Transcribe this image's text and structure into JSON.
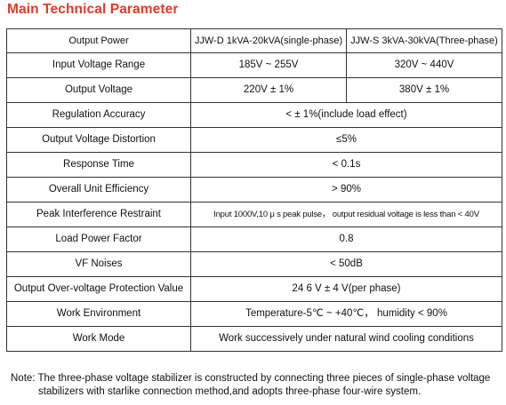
{
  "title": "Main Technical Parameter",
  "header_row": {
    "label": "Output  Power",
    "single": "JJW-D 1kVA-20kVA(single-phase)",
    "three": "JJW-S 3kVA-30kVA(Three-phase)"
  },
  "split_rows": [
    {
      "label": "Input Voltage Range",
      "single": "185V ~ 255V",
      "three": "320V ~ 440V"
    },
    {
      "label": "Output Voltage",
      "single": "220V ± 1%",
      "three": "380V ± 1%"
    }
  ],
  "merged_rows": [
    {
      "label": "Regulation Accuracy",
      "value": "< ± 1%(include load effect)"
    },
    {
      "label": "Output  Voltage  Distortion",
      "value": "≤5%"
    },
    {
      "label": "Response Time",
      "value": "< 0.1s"
    },
    {
      "label": "Overall Unit Efficiency",
      "value": "> 90%"
    },
    {
      "label": "Peak Interference Restraint",
      "value": "Input 1000V,10 μ s peak pulse， output residual voltage is less than  < 40V"
    },
    {
      "label": "Load Power Factor",
      "value": "0.8"
    },
    {
      "label": "VF Noises",
      "value": "< 50dB"
    },
    {
      "label": "Output Over-voltage Protection Value",
      "value": "24 6 V ± 4 V(per phase)"
    },
    {
      "label": "Work Environment",
      "value": "Temperature-5℃ ~ +40℃， humidity < 90%"
    },
    {
      "label": "Work Mode",
      "value": "Work successively under natural wind cooling conditions"
    }
  ],
  "note": {
    "line1": "Note: The three-phase voltage stabilizer is constructed by connecting three pieces of single-phase voltage",
    "line2": "stabilizers with starlike connection method,and adopts three-phase four-wire system."
  }
}
